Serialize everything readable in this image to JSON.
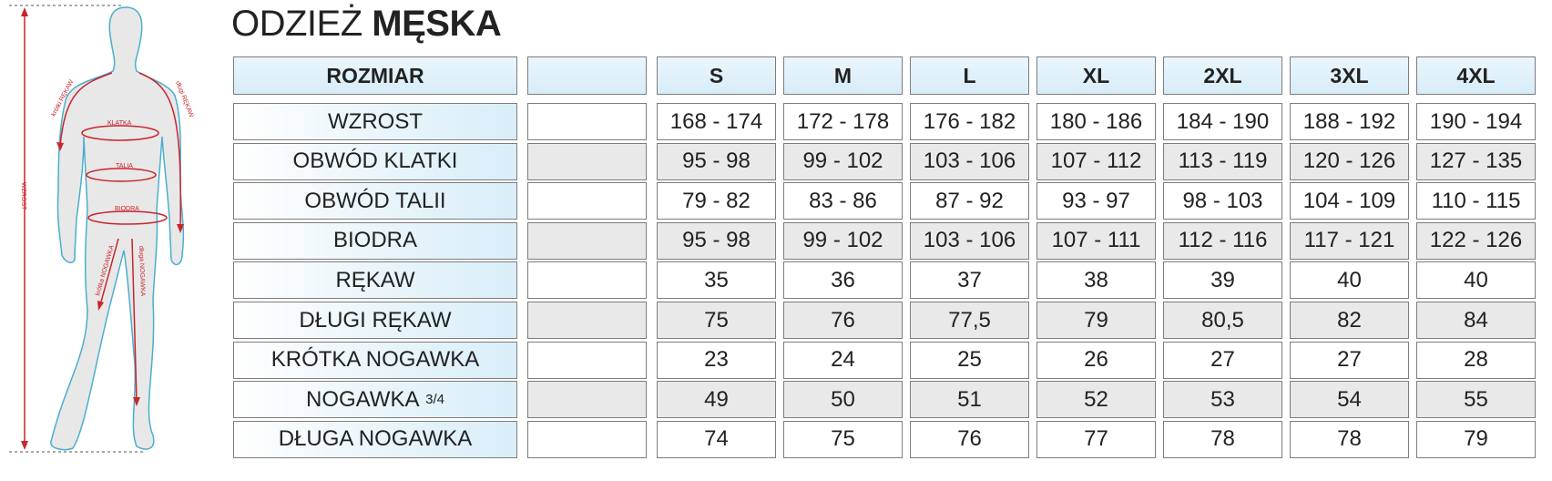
{
  "title": {
    "light": "ODZIEŻ",
    "bold": "MĘSKA"
  },
  "figure": {
    "labels": {
      "height": "WZROST",
      "short_sleeve": "krótki RĘKAW",
      "long_sleeve": "długi RĘKAW",
      "chest": "KLATKA",
      "waist": "TALIA",
      "hips": "BIODRA",
      "short_leg": "krótka NOGAWKA",
      "long_leg": "długa NOGAWKA"
    },
    "arrow_color": "#c8252c",
    "outline_color": "#4aaed0"
  },
  "table": {
    "header_label": "ROZMIAR",
    "sizes": [
      "S",
      "M",
      "L",
      "XL",
      "2XL",
      "3XL",
      "4XL"
    ],
    "rows": [
      {
        "label": "WZROST",
        "values": [
          "168 - 174",
          "172 - 178",
          "176 - 182",
          "180 - 186",
          "184 - 190",
          "188 - 192",
          "190 - 194"
        ]
      },
      {
        "label": "OBWÓD KLATKI",
        "values": [
          "95 - 98",
          "99 - 102",
          "103 - 106",
          "107 - 112",
          "113 - 119",
          "120 - 126",
          "127 - 135"
        ]
      },
      {
        "label": "OBWÓD TALII",
        "values": [
          "79 - 82",
          "83 - 86",
          "87 - 92",
          "93 - 97",
          "98 - 103",
          "104 - 109",
          "110 - 115"
        ]
      },
      {
        "label": "BIODRA",
        "values": [
          "95 - 98",
          "99 - 102",
          "103 - 106",
          "107 - 111",
          "112 - 116",
          "117 - 121",
          "122 - 126"
        ]
      },
      {
        "label": "RĘKAW",
        "values": [
          "35",
          "36",
          "37",
          "38",
          "39",
          "40",
          "40"
        ]
      },
      {
        "label": "DŁUGI RĘKAW",
        "values": [
          "75",
          "76",
          "77,5",
          "79",
          "80,5",
          "82",
          "84"
        ]
      },
      {
        "label": "KRÓTKA NOGAWKA",
        "values": [
          "23",
          "24",
          "25",
          "26",
          "27",
          "27",
          "28"
        ]
      },
      {
        "label": "NOGAWKA",
        "label_fraction": "3/4",
        "values": [
          "49",
          "50",
          "51",
          "52",
          "53",
          "54",
          "55"
        ]
      },
      {
        "label": "DŁUGA NOGAWKA",
        "values": [
          "74",
          "75",
          "76",
          "77",
          "78",
          "78",
          "79"
        ]
      }
    ]
  }
}
